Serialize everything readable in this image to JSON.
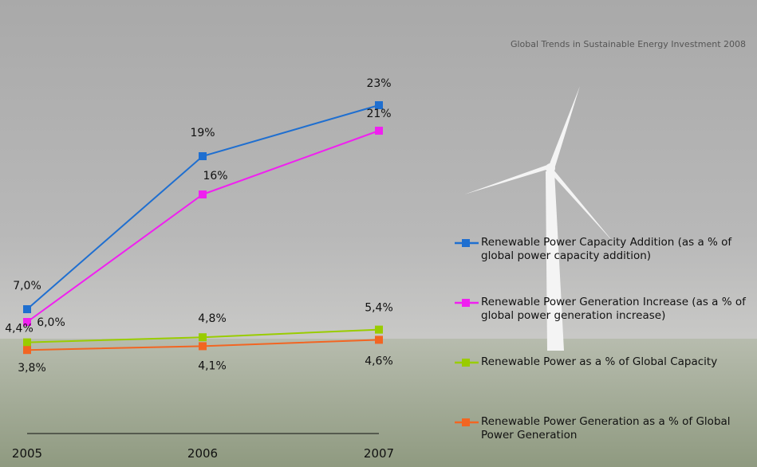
{
  "chart_data": {
    "type": "line",
    "source": "Global Trends in Sustainable Energy Investment 2008",
    "categories": [
      "2005",
      "2006",
      "2007"
    ],
    "series": [
      {
        "name": "Renewable Power Capacity Addition (as a % of global power capacity addition)",
        "color": "#1f6fd0",
        "values": [
          7.0,
          19,
          23
        ],
        "value_labels": [
          "7,0%",
          "19%",
          "23%"
        ]
      },
      {
        "name": "Renewable Power Generation Increase (as a % of global power generation increase)",
        "color": "#f020f0",
        "values": [
          6.0,
          16,
          21
        ],
        "value_labels": [
          "6,0%",
          "16%",
          "21%"
        ]
      },
      {
        "name": "Renewable Power as a % of Global Capacity",
        "color": "#99cc00",
        "values": [
          4.4,
          4.8,
          5.4
        ],
        "value_labels": [
          "4,4%",
          "4,8%",
          "5,4%"
        ]
      },
      {
        "name": "Renewable Power Generation as a % of Global Power Generation",
        "color": "#f26522",
        "values": [
          3.8,
          4.1,
          4.6
        ],
        "value_labels": [
          "3,8%",
          "4,1%",
          "4,6%"
        ]
      }
    ]
  }
}
